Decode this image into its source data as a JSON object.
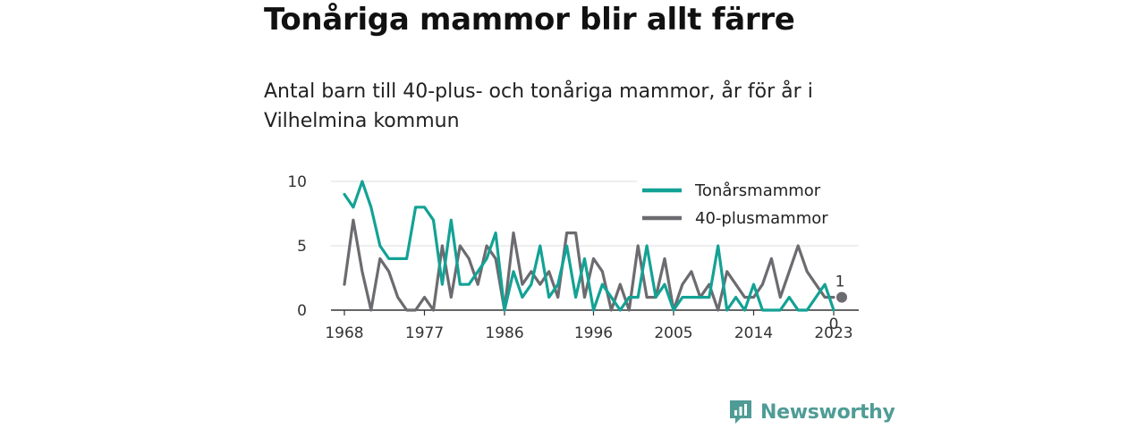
{
  "header": {
    "title": "Tonåriga mammor blir allt färre",
    "subtitle": "Antal barn till 40-plus- och tonåriga mammor, år för år i Vilhelmina kommun"
  },
  "brand": {
    "name": "Newsworthy",
    "color": "#4f9c96",
    "icon": "newsworthy-logo-icon"
  },
  "chart_data": {
    "type": "line",
    "x": [
      1968,
      1969,
      1970,
      1971,
      1972,
      1973,
      1974,
      1975,
      1976,
      1977,
      1978,
      1979,
      1980,
      1981,
      1982,
      1983,
      1984,
      1985,
      1986,
      1987,
      1988,
      1989,
      1990,
      1991,
      1992,
      1993,
      1994,
      1995,
      1996,
      1997,
      1998,
      1999,
      2000,
      2001,
      2002,
      2003,
      2004,
      2005,
      2006,
      2007,
      2008,
      2009,
      2010,
      2011,
      2012,
      2013,
      2014,
      2015,
      2016,
      2017,
      2018,
      2019,
      2020,
      2021,
      2022,
      2023
    ],
    "series": [
      {
        "name": "Tonårsmammor",
        "color": "#13a295",
        "values": [
          9,
          8,
          10,
          8,
          5,
          4,
          4,
          4,
          8,
          8,
          7,
          2,
          7,
          2,
          2,
          3,
          4,
          6,
          0,
          3,
          1,
          2,
          5,
          1,
          2,
          5,
          1,
          4,
          0,
          2,
          1,
          0,
          1,
          1,
          5,
          1,
          2,
          0,
          1,
          1,
          1,
          1,
          5,
          0,
          1,
          0,
          2,
          0,
          0,
          0,
          1,
          0,
          0,
          1,
          2,
          0
        ]
      },
      {
        "name": "40-plusmammor",
        "color": "#6b6b70",
        "values": [
          2,
          7,
          3,
          0,
          4,
          3,
          1,
          0,
          0,
          1,
          0,
          5,
          1,
          5,
          4,
          2,
          5,
          4,
          0,
          6,
          2,
          3,
          2,
          3,
          1,
          6,
          6,
          1,
          4,
          3,
          0,
          2,
          0,
          5,
          1,
          1,
          4,
          0,
          2,
          3,
          1,
          2,
          0,
          3,
          2,
          1,
          1,
          2,
          4,
          1,
          3,
          5,
          3,
          2,
          1,
          1
        ]
      }
    ],
    "end_labels": [
      {
        "series": "40-plusmammor",
        "text": "1"
      },
      {
        "series": "Tonårsmammor",
        "text": "0"
      }
    ],
    "x_ticks": [
      1968,
      1977,
      1986,
      1996,
      2005,
      2014,
      2023
    ],
    "y_ticks": [
      0,
      5,
      10
    ],
    "ylim": [
      0,
      10
    ],
    "xlim": [
      1968,
      2023
    ],
    "grid": "horizontal",
    "legend_position": "top-right",
    "xlabel": "",
    "ylabel": ""
  }
}
